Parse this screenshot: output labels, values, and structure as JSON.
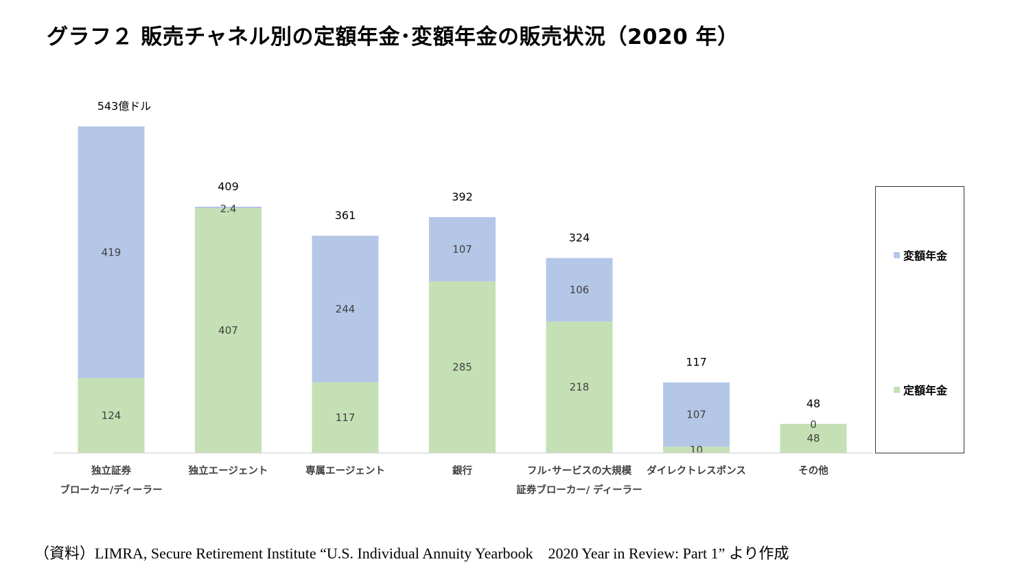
{
  "title": "グラフ２ 販売チャネル別の定額年金･変額年金の販売状況（2020 年）",
  "source": "（資料）LIMRA, Secure Retirement Institute “U.S. Individual Annuity Yearbook　2020 Year in Review: Part 1” より作成",
  "colors": {
    "variable": "#b4c7e7",
    "fixed": "#c5e0b4",
    "axis": "#d9d9d9"
  },
  "chart_data": {
    "type": "bar",
    "stacked": true,
    "categories": [
      [
        "独立証券",
        "ブローカー/ディーラー"
      ],
      [
        "独立エージェント"
      ],
      [
        "専属エージェント"
      ],
      [
        "銀行"
      ],
      [
        "フル･サービスの大規模",
        "証券ブローカー/ ディーラー"
      ],
      [
        "ダイレクトレスポンス"
      ],
      [
        "その他"
      ]
    ],
    "series": [
      {
        "name": "定額年金",
        "values": [
          124,
          407,
          117,
          285,
          218,
          10,
          48
        ],
        "labels": [
          "124",
          "407",
          "117",
          "285",
          "218",
          "10",
          "48"
        ]
      },
      {
        "name": "変額年金",
        "values": [
          419,
          2.4,
          244,
          107,
          106,
          107,
          0
        ],
        "labels": [
          "419",
          "2.4",
          "244",
          "107",
          "106",
          "107",
          "0"
        ]
      }
    ],
    "totals": [
      543,
      409,
      361,
      392,
      324,
      117,
      48
    ],
    "total_labels": [
      "543億ドル",
      "409",
      "361",
      "392",
      "324",
      "117",
      "48"
    ],
    "legend": [
      "変額年金",
      "定額年金"
    ],
    "legend_position": "right",
    "grid": false
  }
}
